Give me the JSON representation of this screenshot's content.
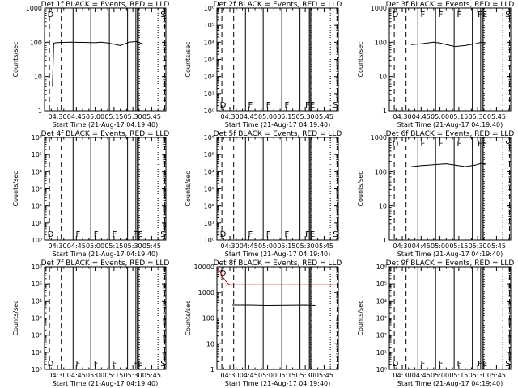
{
  "chart_data": {
    "type": "line",
    "x_tick_labels": [
      "04:30",
      "04:45",
      "05:00",
      "05:15",
      "05:30",
      "05:45"
    ],
    "x_tick_minutes": [
      270,
      285,
      300,
      315,
      330,
      345
    ],
    "x_range_minutes": [
      259.67,
      356.33
    ],
    "xlabel": "Start Time (21-Aug-17 04:19:40)",
    "ylabel": "Counts/sec",
    "grid": false,
    "event_lines": {
      "dashed": [
        263.6,
        273.0,
        355.4
      ],
      "dotted": [
        335.2,
        350.0
      ],
      "solid": [
        282.4,
        296.5,
        311.3,
        325.8,
        332.4,
        333.6,
        334.4
      ]
    },
    "panels": [
      {
        "title": "Det 1f BLACK = Events, RED = LLD",
        "y_scale": "log",
        "ylim": [
          1,
          1000
        ],
        "y_tick_labels": [
          "1",
          "10",
          "100",
          "1000"
        ],
        "y_tick_values": [
          1,
          10,
          100,
          1000
        ],
        "marks": [
          {
            "text": "D",
            "pos": "top-left"
          },
          {
            "text": "S",
            "pos": "top-right"
          }
        ],
        "series": [
          {
            "color": "#000000",
            "x": [
              266,
              267,
              270,
              280,
              290,
              300,
              305,
              310,
              320,
              327,
              333,
              336,
              338
            ],
            "y": [
              5,
              95,
              98,
              100,
              99,
              97,
              100,
              96,
              80,
              100,
              105,
              95,
              90
            ]
          }
        ]
      },
      {
        "title": "Det 2f BLACK = Events, RED = LLD",
        "y_scale": "log",
        "ylim": [
          1,
          1000000
        ],
        "y_tick_labels": [
          "10⁰",
          "10¹",
          "10²",
          "10³",
          "10⁴",
          "10⁵",
          "10⁶"
        ],
        "y_tick_values": [
          1,
          10,
          100,
          1000,
          10000,
          100000,
          1000000
        ],
        "marks": [
          {
            "text": "D",
            "pos": "bottom-left"
          },
          {
            "text": "F",
            "pos": "bottom-1"
          },
          {
            "text": "F",
            "pos": "bottom-2"
          },
          {
            "text": "F",
            "pos": "bottom-3"
          },
          {
            "text": "FE",
            "pos": "bottom-4"
          },
          {
            "text": "S",
            "pos": "bottom-right"
          }
        ],
        "series": []
      },
      {
        "title": "Det 3f BLACK = Events, RED = LLD",
        "y_scale": "log",
        "ylim": [
          1,
          1000
        ],
        "y_tick_labels": [
          "1",
          "10",
          "100",
          "1000"
        ],
        "y_tick_values": [
          1,
          10,
          100,
          1000
        ],
        "marks": [
          {
            "text": "D",
            "pos": "top-left"
          },
          {
            "text": "F",
            "pos": "top-1"
          },
          {
            "text": "F",
            "pos": "top-2"
          },
          {
            "text": "F",
            "pos": "top-3"
          },
          {
            "text": "FE",
            "pos": "top-4"
          },
          {
            "text": "S",
            "pos": "top-right"
          }
        ],
        "series": [
          {
            "color": "#000000",
            "x": [
              277,
              285,
              295,
              300,
              305,
              312,
              320,
              328,
              333,
              337
            ],
            "y": [
              85,
              90,
              100,
              95,
              85,
              75,
              80,
              90,
              100,
              95
            ]
          }
        ]
      },
      {
        "title": "Det 4f BLACK = Events, RED = LLD",
        "y_scale": "log",
        "ylim": [
          1,
          1000000
        ],
        "y_tick_labels": [
          "10⁰",
          "10¹",
          "10²",
          "10³",
          "10⁴",
          "10⁵",
          "10⁶"
        ],
        "y_tick_values": [
          1,
          10,
          100,
          1000,
          10000,
          100000,
          1000000
        ],
        "marks": [
          {
            "text": "D",
            "pos": "bottom-left"
          },
          {
            "text": "F",
            "pos": "bottom-1"
          },
          {
            "text": "F",
            "pos": "bottom-2"
          },
          {
            "text": "F",
            "pos": "bottom-3"
          },
          {
            "text": "FE",
            "pos": "bottom-4"
          },
          {
            "text": "S",
            "pos": "bottom-right"
          }
        ],
        "series": []
      },
      {
        "title": "Det 5f BLACK = Events, RED = LLD",
        "y_scale": "log",
        "ylim": [
          1,
          1000000
        ],
        "y_tick_labels": [
          "10⁰",
          "10¹",
          "10²",
          "10³",
          "10⁴",
          "10⁵",
          "10⁶"
        ],
        "y_tick_values": [
          1,
          10,
          100,
          1000,
          10000,
          100000,
          1000000
        ],
        "marks": [
          {
            "text": "D",
            "pos": "bottom-left"
          },
          {
            "text": "F",
            "pos": "bottom-1"
          },
          {
            "text": "F",
            "pos": "bottom-2"
          },
          {
            "text": "F",
            "pos": "bottom-3"
          },
          {
            "text": "FE",
            "pos": "bottom-4"
          },
          {
            "text": "S",
            "pos": "bottom-right"
          }
        ],
        "series": []
      },
      {
        "title": "Det 6f BLACK = Events, RED = LLD",
        "y_scale": "log",
        "ylim": [
          1,
          1000
        ],
        "y_tick_labels": [
          "1",
          "10",
          "100",
          "1000"
        ],
        "y_tick_values": [
          1,
          10,
          100,
          1000
        ],
        "marks": [
          {
            "text": "D",
            "pos": "top-left"
          },
          {
            "text": "F",
            "pos": "top-1"
          },
          {
            "text": "F",
            "pos": "top-2"
          },
          {
            "text": "F",
            "pos": "top-3"
          },
          {
            "text": "FE",
            "pos": "top-4"
          },
          {
            "text": "S",
            "pos": "top-right"
          }
        ],
        "series": [
          {
            "color": "#000000",
            "x": [
              277,
              285,
              295,
              300,
              305,
              310,
              315,
              320,
              328,
              333,
              337
            ],
            "y": [
              140,
              150,
              160,
              165,
              170,
              160,
              150,
              140,
              155,
              175,
              165
            ]
          }
        ]
      },
      {
        "title": "Det 7f BLACK = Events, RED = LLD",
        "y_scale": "log",
        "ylim": [
          1,
          1000000
        ],
        "y_tick_labels": [
          "10⁰",
          "10¹",
          "10²",
          "10³",
          "10⁴",
          "10⁵",
          "10⁶"
        ],
        "y_tick_values": [
          1,
          10,
          100,
          1000,
          10000,
          100000,
          1000000
        ],
        "marks": [
          {
            "text": "D",
            "pos": "bottom-left"
          },
          {
            "text": "F",
            "pos": "bottom-1"
          },
          {
            "text": "F",
            "pos": "bottom-2"
          },
          {
            "text": "F",
            "pos": "bottom-3"
          },
          {
            "text": "FE",
            "pos": "bottom-4"
          },
          {
            "text": "S",
            "pos": "bottom-right"
          }
        ],
        "series": []
      },
      {
        "title": "Det 8f BLACK = Events, RED = LLD",
        "y_scale": "log",
        "ylim": [
          1,
          10000
        ],
        "y_tick_labels": [
          "1",
          "10",
          "100",
          "1000",
          "10000"
        ],
        "y_tick_values": [
          1,
          10,
          100,
          1000,
          10000
        ],
        "marks": [
          {
            "text": "D",
            "pos": "top-left"
          }
        ],
        "series": [
          {
            "color": "#cc0000",
            "x": [
              260,
              262,
              265,
              268,
              270,
              280,
              300,
              320,
              340,
              356
            ],
            "y": [
              9000,
              6500,
              3500,
              2300,
              2000,
              2000,
              2000,
              2000,
              2000,
              2000
            ]
          },
          {
            "color": "#000000",
            "x": [
              272,
              285,
              300,
              315,
              330,
              338
            ],
            "y": [
              330,
              330,
              320,
              325,
              330,
              320
            ]
          }
        ]
      },
      {
        "title": "Det 9f BLACK = Events, RED = LLD",
        "y_scale": "log",
        "ylim": [
          1,
          1000000
        ],
        "y_tick_labels": [
          "10⁰",
          "10¹",
          "10²",
          "10³",
          "10⁴",
          "10⁵",
          "10⁶"
        ],
        "y_tick_values": [
          1,
          10,
          100,
          1000,
          10000,
          100000,
          1000000
        ],
        "marks": [
          {
            "text": "D",
            "pos": "bottom-left"
          },
          {
            "text": "F",
            "pos": "bottom-1"
          },
          {
            "text": "F",
            "pos": "bottom-2"
          },
          {
            "text": "F",
            "pos": "bottom-3"
          },
          {
            "text": "FE",
            "pos": "bottom-4"
          },
          {
            "text": "S",
            "pos": "bottom-right"
          }
        ],
        "series": []
      }
    ]
  }
}
